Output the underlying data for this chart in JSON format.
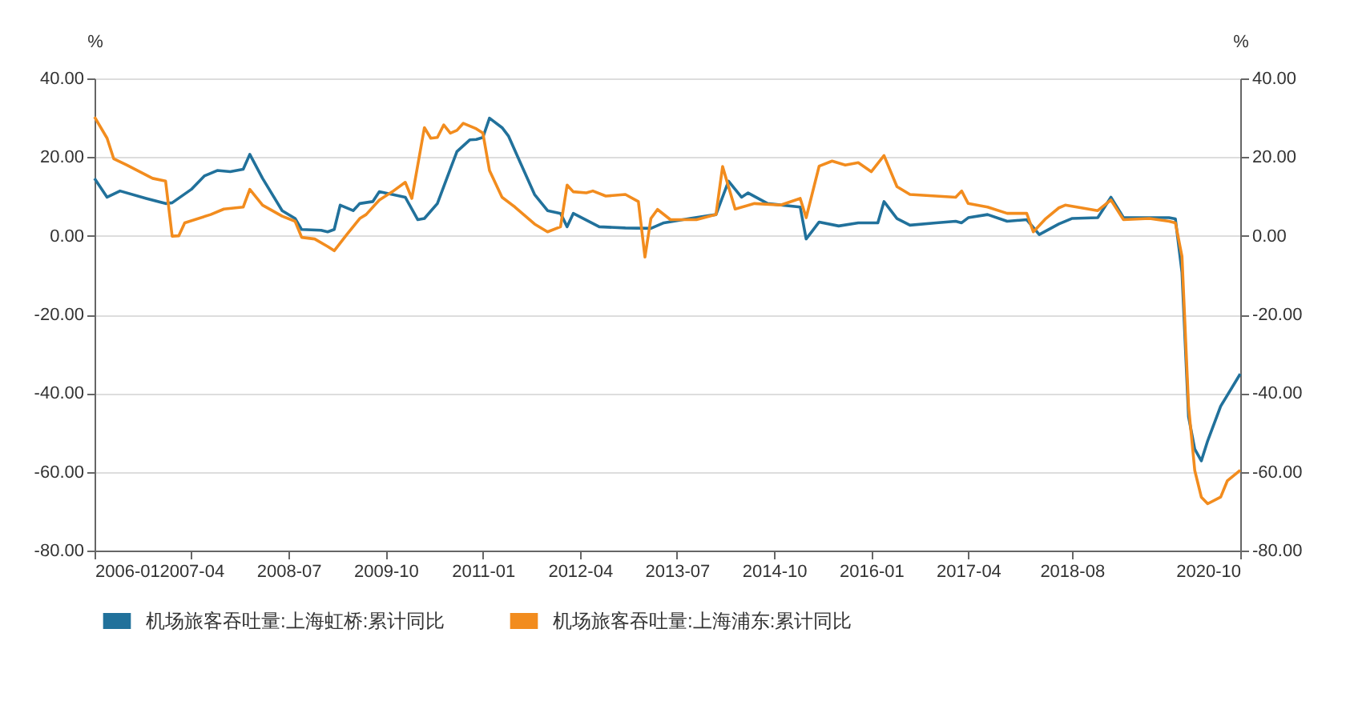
{
  "chart_data": {
    "type": "line",
    "ylabel": "%",
    "y2label": "%",
    "xlim": [
      "2006-01",
      "2020-10"
    ],
    "xticks": [
      "2006-01",
      "2007-04",
      "2008-07",
      "2009-10",
      "2011-01",
      "2012-04",
      "2013-07",
      "2014-10",
      "2016-01",
      "2017-04",
      "2018-08",
      "2020-10"
    ],
    "ylim": [
      -80,
      40
    ],
    "yticks": [
      {
        "value": 40,
        "label": "40.00"
      },
      {
        "value": 20,
        "label": "20.00"
      },
      {
        "value": 0,
        "label": "0.00"
      },
      {
        "value": -20,
        "label": "-20.00"
      },
      {
        "value": -40,
        "label": "-40.00"
      },
      {
        "value": -60,
        "label": "-60.00"
      },
      {
        "value": -80,
        "label": "-80.00"
      }
    ],
    "y2lim": [
      -80,
      40
    ],
    "y2ticks": [
      {
        "value": 40,
        "label": "40.00"
      },
      {
        "value": 20,
        "label": "20.00"
      },
      {
        "value": 0,
        "label": "0.00"
      },
      {
        "value": -20,
        "label": "-20.00"
      },
      {
        "value": -40,
        "label": "-40.00"
      },
      {
        "value": -60,
        "label": "-60.00"
      },
      {
        "value": -80,
        "label": "-80.00"
      }
    ],
    "grid": "y",
    "legend": "bottom",
    "line_style": "solid",
    "marker": "none",
    "series": [
      {
        "name": "机场旅客吞吐量:上海虹桥:累计同比",
        "color": "#21719b",
        "x": [
          "2006-01",
          "2006-03",
          "2006-05",
          "2006-09",
          "2006-12",
          "2007-01",
          "2007-04",
          "2007-06",
          "2007-08",
          "2007-10",
          "2007-12",
          "2008-01",
          "2008-03",
          "2008-06",
          "2008-08",
          "2008-09",
          "2008-12",
          "2009-01",
          "2009-02",
          "2009-03",
          "2009-05",
          "2009-06",
          "2009-08",
          "2009-09",
          "2009-11",
          "2010-01",
          "2010-03",
          "2010-04",
          "2010-06",
          "2010-08",
          "2010-09",
          "2010-11",
          "2010-12",
          "2011-01",
          "2011-02",
          "2011-04",
          "2011-05",
          "2011-07",
          "2011-09",
          "2011-11",
          "2012-01",
          "2012-02",
          "2012-03",
          "2012-07",
          "2012-11",
          "2013-03",
          "2013-05",
          "2013-09",
          "2014-01",
          "2014-03",
          "2014-05",
          "2014-06",
          "2014-09",
          "2015-02",
          "2015-03",
          "2015-05",
          "2015-08",
          "2015-11",
          "2016-02",
          "2016-03",
          "2016-05",
          "2016-07",
          "2016-11",
          "2017-02",
          "2017-03",
          "2017-04",
          "2017-07",
          "2017-10",
          "2018-01",
          "2018-03",
          "2018-06",
          "2018-08",
          "2018-12",
          "2019-02",
          "2019-04",
          "2019-11",
          "2019-12",
          "2020-01",
          "2020-02",
          "2020-03",
          "2020-04",
          "2020-05",
          "2020-07",
          "2020-10"
        ],
        "values": [
          14.6,
          9.8,
          11.4,
          9.5,
          8.2,
          8.4,
          11.8,
          15.2,
          16.6,
          16.3,
          16.9,
          20.7,
          14.6,
          6.4,
          4.4,
          1.6,
          1.4,
          1.0,
          1.6,
          7.8,
          6.4,
          8.2,
          8.7,
          11.2,
          10.5,
          9.8,
          4.1,
          4.4,
          8.2,
          17,
          21.4,
          24.4,
          24.5,
          25,
          29.9,
          27.5,
          25.4,
          18,
          10.5,
          6.4,
          5.7,
          2.3,
          5.7,
          2.3,
          2.0,
          1.9,
          3.3,
          4.4,
          5.4,
          13.9,
          9.8,
          10.9,
          8.2,
          7.3,
          -0.8,
          3.5,
          2.5,
          3.3,
          3.3,
          8.7,
          4.4,
          2.7,
          3.3,
          3.7,
          3.3,
          4.6,
          5.4,
          3.7,
          4.1,
          0.3,
          3.0,
          4.4,
          4.6,
          9.8,
          4.6,
          4.6,
          4.3,
          -9.3,
          -46,
          -54.2,
          -57.2,
          -52.1,
          -43.3,
          -35.1
        ]
      },
      {
        "name": "机场旅客吞吐量:上海浦东:累计同比",
        "color": "#f28c1e",
        "x": [
          "2006-01",
          "2006-03",
          "2006-04",
          "2006-06",
          "2006-10",
          "2006-12",
          "2007-01",
          "2007-02",
          "2007-03",
          "2007-07",
          "2007-09",
          "2007-12",
          "2008-01",
          "2008-03",
          "2008-06",
          "2008-08",
          "2008-09",
          "2008-11",
          "2009-01",
          "2009-02",
          "2009-04",
          "2009-06",
          "2009-07",
          "2009-09",
          "2009-11",
          "2010-01",
          "2010-02",
          "2010-04",
          "2010-05",
          "2010-06",
          "2010-07",
          "2010-08",
          "2010-09",
          "2010-10",
          "2010-12",
          "2011-01",
          "2011-02",
          "2011-04",
          "2011-06",
          "2011-09",
          "2011-11",
          "2012-01",
          "2012-02",
          "2012-03",
          "2012-05",
          "2012-06",
          "2012-08",
          "2012-11",
          "2013-01",
          "2013-02",
          "2013-03",
          "2013-04",
          "2013-06",
          "2013-10",
          "2014-01",
          "2014-02",
          "2014-04",
          "2014-07",
          "2014-11",
          "2015-02",
          "2015-03",
          "2015-05",
          "2015-07",
          "2015-09",
          "2015-11",
          "2016-01",
          "2016-03",
          "2016-05",
          "2016-07",
          "2016-11",
          "2017-02",
          "2017-03",
          "2017-04",
          "2017-07",
          "2017-10",
          "2018-01",
          "2018-02",
          "2018-04",
          "2018-06",
          "2018-07",
          "2018-12",
          "2019-02",
          "2019-04",
          "2019-08",
          "2019-11",
          "2019-12",
          "2020-01",
          "2020-02",
          "2020-03",
          "2020-04",
          "2020-05",
          "2020-07",
          "2020-08",
          "2020-10"
        ],
        "values": [
          30.2,
          24.8,
          19.6,
          18.0,
          14.6,
          13.9,
          -0.1,
          0,
          3.3,
          5.4,
          6.8,
          7.3,
          11.8,
          7.8,
          5.0,
          3.7,
          -0.4,
          -0.8,
          -2.7,
          -3.8,
          0.3,
          4.4,
          5.4,
          9.1,
          11.2,
          13.6,
          9.5,
          27.5,
          24.8,
          25,
          28.2,
          26.1,
          26.8,
          28.6,
          27.2,
          26.1,
          16.6,
          9.8,
          7.3,
          3.0,
          1.0,
          2.3,
          12.9,
          11.2,
          10.9,
          11.4,
          10.1,
          10.5,
          8.7,
          -5.4,
          4.4,
          6.7,
          4.1,
          4.1,
          5.4,
          17.6,
          6.8,
          8.2,
          7.8,
          9.5,
          4.6,
          17.7,
          19,
          18,
          18.6,
          16.3,
          20.4,
          12.5,
          10.5,
          10.1,
          9.8,
          11.4,
          8.2,
          7.3,
          5.7,
          5.7,
          1.0,
          4.4,
          7.1,
          7.8,
          6.4,
          9.1,
          4.1,
          4.4,
          3.7,
          3.3,
          -5.2,
          -43.3,
          -59.6,
          -66.4,
          -68.1,
          -66.4,
          -62.3,
          -59.6
        ]
      }
    ]
  }
}
